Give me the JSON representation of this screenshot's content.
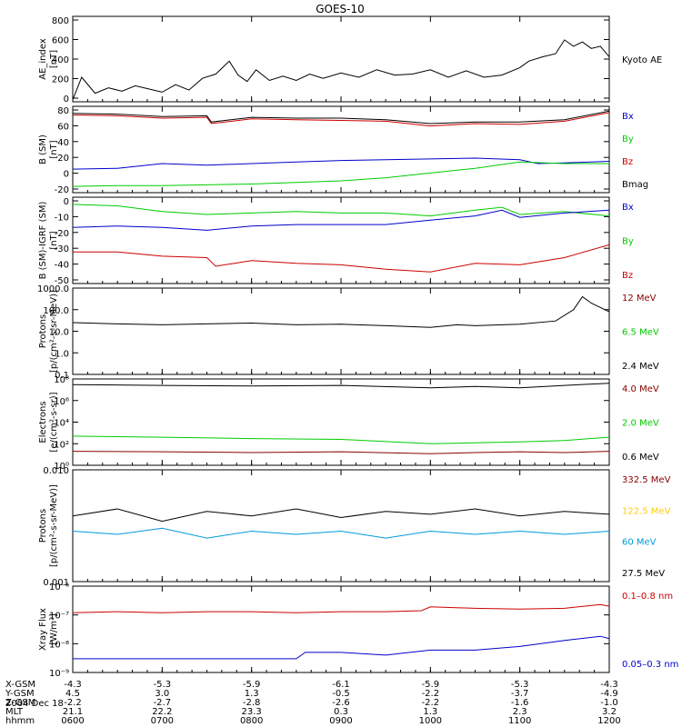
{
  "title": "GOES-10",
  "colors": {
    "axis": "#000000",
    "black": "#000000",
    "red": "#cc0000",
    "green": "#00cc00",
    "blue": "#0000cc",
    "cyan": "#0099dd",
    "yellow": "#ffcc00",
    "darkred": "#880000"
  },
  "chart_data": [
    {
      "type": "line",
      "panel": "ae",
      "ylabel": [
        "AE_index",
        "[nT]"
      ],
      "ylim": [
        0,
        800
      ],
      "yticks": [
        "800",
        "600",
        "400",
        "200",
        "0"
      ],
      "legend": [
        {
          "name": "Kyoto AE",
          "color": "black"
        }
      ],
      "series": [
        {
          "name": "Kyoto AE",
          "color": "black",
          "x": [
            0,
            0.1,
            0.25,
            0.4,
            0.55,
            0.7,
            0.85,
            1.0,
            1.15,
            1.3,
            1.45,
            1.6,
            1.75,
            1.85,
            1.95,
            2.05,
            2.2,
            2.35,
            2.5,
            2.65,
            2.8,
            3.0,
            3.2,
            3.4,
            3.6,
            3.8,
            4.0,
            4.2,
            4.4,
            4.6,
            4.8,
            5.0,
            5.1,
            5.25,
            5.4,
            5.5,
            5.6,
            5.7,
            5.8,
            5.9,
            6.0
          ],
          "y": [
            20,
            230,
            80,
            130,
            100,
            150,
            120,
            90,
            160,
            110,
            220,
            260,
            380,
            250,
            190,
            300,
            200,
            240,
            200,
            260,
            220,
            270,
            230,
            300,
            250,
            260,
            300,
            230,
            290,
            230,
            250,
            320,
            380,
            420,
            450,
            580,
            520,
            560,
            500,
            520,
            420
          ]
        }
      ]
    },
    {
      "type": "line",
      "panel": "bsm",
      "ylabel": [
        "B (SM)",
        "[nT]"
      ],
      "ylim": [
        -25,
        85
      ],
      "yticks": [
        "80",
        "60",
        "40",
        "20",
        "0",
        "-20"
      ],
      "legend": [
        {
          "name": "Bx",
          "color": "blue"
        },
        {
          "name": "By",
          "color": "green"
        },
        {
          "name": "Bz",
          "color": "red"
        },
        {
          "name": "Bmag",
          "color": "black"
        }
      ],
      "series": [
        {
          "name": "Bmag",
          "color": "black",
          "x": [
            0,
            0.5,
            1.0,
            1.5,
            1.55,
            2.0,
            2.5,
            3.0,
            3.5,
            4.0,
            4.5,
            5.0,
            5.5,
            6.0
          ],
          "y": [
            76,
            75,
            72,
            73,
            65,
            71,
            70,
            70,
            68,
            63,
            65,
            65,
            68,
            79
          ]
        },
        {
          "name": "Bz",
          "color": "red",
          "x": [
            0,
            0.5,
            1.0,
            1.5,
            1.55,
            2.0,
            2.5,
            3.0,
            3.5,
            4.0,
            4.5,
            5.0,
            5.5,
            6.0
          ],
          "y": [
            74,
            73,
            70,
            71,
            63,
            69,
            68,
            67,
            66,
            60,
            63,
            62,
            66,
            77
          ]
        },
        {
          "name": "Bx",
          "color": "blue",
          "x": [
            0,
            0.5,
            1.0,
            1.5,
            2.0,
            2.5,
            3.0,
            3.5,
            4.0,
            4.5,
            5.0,
            5.2,
            5.5,
            6.0
          ],
          "y": [
            5,
            6,
            12,
            10,
            12,
            14,
            16,
            17,
            18,
            19,
            17,
            12,
            13,
            15
          ]
        },
        {
          "name": "By",
          "color": "green",
          "x": [
            0,
            0.5,
            1.0,
            1.5,
            2.0,
            2.5,
            3.0,
            3.5,
            4.0,
            4.5,
            5.0,
            5.5,
            6.0
          ],
          "y": [
            -17,
            -16,
            -16,
            -15,
            -14,
            -12,
            -10,
            -6,
            0,
            6,
            14,
            12,
            12
          ]
        }
      ]
    },
    {
      "type": "line",
      "panel": "bigrf",
      "ylabel": [
        "B (SM)-IGRF (SM)",
        "[nT]"
      ],
      "ylim": [
        -52,
        8
      ],
      "yticks": [
        "0",
        "-10",
        "-20",
        "-30",
        "-40",
        "-50"
      ],
      "legend": [
        {
          "name": "Bx",
          "color": "blue"
        },
        {
          "name": "By",
          "color": "green"
        },
        {
          "name": "Bz",
          "color": "red"
        }
      ],
      "series": [
        {
          "name": "By",
          "color": "green",
          "x": [
            0,
            0.5,
            1.0,
            1.5,
            2.0,
            2.5,
            3.0,
            3.5,
            4.0,
            4.5,
            4.8,
            5.0,
            5.5,
            6.0
          ],
          "y": [
            3,
            2,
            -2,
            -4,
            -3,
            -2,
            -3,
            -3,
            -5,
            -1,
            1,
            -4,
            -2,
            -5
          ]
        },
        {
          "name": "Bx",
          "color": "blue",
          "x": [
            0,
            0.5,
            1.0,
            1.5,
            2.0,
            2.5,
            3.0,
            3.5,
            4.0,
            4.5,
            4.8,
            5.0,
            5.5,
            6.0
          ],
          "y": [
            -13,
            -12,
            -13,
            -15,
            -12,
            -11,
            -11,
            -11,
            -8,
            -5,
            -1,
            -6,
            -3,
            -1
          ]
        },
        {
          "name": "Bz",
          "color": "red",
          "x": [
            0,
            0.5,
            1.0,
            1.5,
            1.6,
            2.0,
            2.5,
            3.0,
            3.5,
            4.0,
            4.5,
            5.0,
            5.5,
            6.0
          ],
          "y": [
            -30,
            -30,
            -33,
            -34,
            -40,
            -36,
            -38,
            -39,
            -42,
            -44,
            -38,
            -39,
            -34,
            -25
          ]
        }
      ]
    },
    {
      "type": "line",
      "panel": "protons-low",
      "ylabel": [
        "Protons",
        "[p/(cm²-s-sr-MeV)]"
      ],
      "yscale": "log",
      "ylim": [
        0.1,
        1000
      ],
      "yticks": [
        "1000.0",
        "100.0",
        "10.0",
        "1.0",
        "0.1"
      ],
      "legend": [
        {
          "name": "12 MeV",
          "color": "darkred"
        },
        {
          "name": "6.5 MeV",
          "color": "green"
        },
        {
          "name": "2.4 MeV",
          "color": "black"
        }
      ],
      "series": [
        {
          "name": "2.4 MeV",
          "color": "black",
          "x": [
            0,
            0.5,
            1.0,
            1.5,
            2.0,
            2.5,
            3.0,
            3.5,
            4.0,
            4.3,
            4.5,
            5.0,
            5.4,
            5.6,
            5.7,
            5.8,
            6.0
          ],
          "y": [
            25,
            22,
            20,
            22,
            24,
            20,
            21,
            18,
            15,
            20,
            18,
            21,
            30,
            100,
            400,
            200,
            80
          ]
        }
      ]
    },
    {
      "type": "line",
      "panel": "electrons",
      "ylabel": [
        "Electrons",
        "[e/(cm²-s-sr)]"
      ],
      "yscale": "log",
      "ylim": [
        1,
        100000000
      ],
      "yticks": [
        "10⁸",
        "10⁶",
        "10⁴",
        "10²",
        "10⁰"
      ],
      "legend": [
        {
          "name": "4.0 MeV",
          "color": "darkred"
        },
        {
          "name": "2.0 MeV",
          "color": "green"
        },
        {
          "name": "0.6 MeV",
          "color": "black"
        }
      ],
      "series": [
        {
          "name": "0.6 MeV",
          "color": "black",
          "x": [
            0,
            1.0,
            2.0,
            3.0,
            4.0,
            4.5,
            5.0,
            5.5,
            6.0
          ],
          "y": [
            30000000,
            25000000,
            22000000,
            25000000,
            15000000,
            20000000,
            15000000,
            25000000,
            40000000
          ]
        },
        {
          "name": "2.0 MeV",
          "color": "green",
          "x": [
            0,
            1.0,
            2.0,
            3.0,
            4.0,
            4.5,
            5.0,
            5.5,
            6.0
          ],
          "y": [
            500,
            400,
            300,
            250,
            100,
            120,
            150,
            200,
            400
          ]
        },
        {
          "name": "4.0 MeV",
          "color": "darkred",
          "x": [
            0,
            1.0,
            2.0,
            3.0,
            4.0,
            4.5,
            5.0,
            5.5,
            6.0
          ],
          "y": [
            20,
            18,
            15,
            18,
            12,
            15,
            18,
            15,
            20
          ]
        }
      ]
    },
    {
      "type": "line",
      "panel": "protons-high",
      "ylabel": [
        "Protons",
        "[p/(cm²-s-sr-MeV)]"
      ],
      "yscale": "log",
      "ylim": [
        0.001,
        0.1
      ],
      "yticks": [
        "0.010",
        "0.001"
      ],
      "legend": [
        {
          "name": "332.5 MeV",
          "color": "darkred"
        },
        {
          "name": "122.5 MeV",
          "color": "yellow"
        },
        {
          "name": "60 MeV",
          "color": "cyan"
        },
        {
          "name": "27.5 MeV",
          "color": "black"
        }
      ],
      "series": [
        {
          "name": "27.5 MeV",
          "color": "black",
          "x": [
            0,
            0.5,
            1.0,
            1.5,
            2.0,
            2.5,
            3.0,
            3.5,
            4.0,
            4.5,
            5.0,
            5.5,
            6.0
          ],
          "y": [
            0.015,
            0.02,
            0.012,
            0.018,
            0.015,
            0.02,
            0.014,
            0.018,
            0.016,
            0.02,
            0.015,
            0.018,
            0.016
          ]
        },
        {
          "name": "60 MeV",
          "color": "cyan",
          "x": [
            0,
            0.5,
            1.0,
            1.5,
            2.0,
            2.5,
            3.0,
            3.5,
            4.0,
            4.5,
            5.0,
            5.5,
            6.0
          ],
          "y": [
            0.008,
            0.007,
            0.009,
            0.006,
            0.008,
            0.007,
            0.008,
            0.006,
            0.008,
            0.007,
            0.008,
            0.007,
            0.008
          ]
        }
      ]
    },
    {
      "type": "line",
      "panel": "xray",
      "ylabel": [
        "Xray Flux",
        "[W/m²]"
      ],
      "yscale": "log",
      "ylim": [
        1e-09,
        1e-06
      ],
      "yticks": [
        "10⁻⁶",
        "10⁻⁷",
        "10⁻⁸",
        "10⁻⁹"
      ],
      "legend": [
        {
          "name": "0.1–0.8 nm",
          "color": "red"
        },
        {
          "name": "0.05–0.3 nm",
          "color": "blue"
        }
      ],
      "series": [
        {
          "name": "0.1–0.8 nm",
          "color": "red",
          "x": [
            0,
            0.5,
            1.0,
            1.5,
            2.0,
            2.5,
            3.0,
            3.5,
            3.9,
            4.0,
            4.5,
            5.0,
            5.5,
            5.9,
            6.0
          ],
          "y": [
            1.2e-07,
            1.3e-07,
            1.2e-07,
            1.3e-07,
            1.3e-07,
            1.2e-07,
            1.3e-07,
            1.3e-07,
            1.4e-07,
            1.9e-07,
            1.7e-07,
            1.6e-07,
            1.7e-07,
            2.3e-07,
            2e-07
          ]
        },
        {
          "name": "0.05–0.3 nm",
          "color": "blue",
          "x": [
            0,
            0.5,
            1.0,
            1.5,
            2.0,
            2.5,
            2.6,
            3.0,
            3.5,
            4.0,
            4.5,
            5.0,
            5.5,
            5.9,
            6.0
          ],
          "y": [
            3e-09,
            3e-09,
            3e-09,
            3e-09,
            3e-09,
            3e-09,
            5e-09,
            5e-09,
            4e-09,
            6e-09,
            6e-09,
            8e-09,
            1.3e-08,
            1.8e-08,
            1.5e-08
          ]
        }
      ]
    }
  ],
  "xaxis": {
    "rows": [
      {
        "label": "X-GSM",
        "values": [
          "-4.3",
          "-5.3",
          "-5.9",
          "-6.1",
          "-5.9",
          "-5.3",
          "-4.3"
        ]
      },
      {
        "label": "Y-GSM",
        "values": [
          "4.5",
          "3.0",
          "1.3",
          "-0.5",
          "-2.2",
          "-3.7",
          "-4.9"
        ]
      },
      {
        "label": "Z-GSM",
        "values": [
          "-2.2",
          "-2.7",
          "-2.8",
          "-2.6",
          "-2.2",
          "-1.6",
          "-1.0"
        ]
      },
      {
        "label": "MLT",
        "values": [
          "21.1",
          "22.2",
          "23.3",
          "0.3",
          "1.3",
          "2.3",
          "3.2"
        ]
      },
      {
        "label": "hhmm",
        "values": [
          "0600",
          "0700",
          "0800",
          "0900",
          "1000",
          "1100",
          "1200"
        ]
      }
    ],
    "date": "2004 Dec 18"
  }
}
